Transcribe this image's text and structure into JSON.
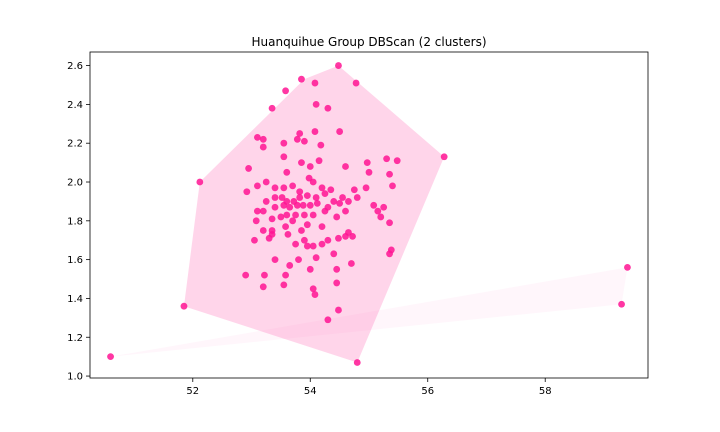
{
  "chart_data": {
    "type": "scatter",
    "title": "Huanquihue Group DBScan (2 clusters)",
    "xlabel": "",
    "ylabel": "",
    "xlim": [
      50.25,
      59.75
    ],
    "ylim": [
      0.99,
      2.67
    ],
    "xticks": [
      52,
      54,
      56,
      58
    ],
    "yticks": [
      1.0,
      1.2,
      1.4,
      1.6,
      1.8,
      2.0,
      2.2,
      2.4,
      2.6
    ],
    "grid": false,
    "point_color": "#ff1493",
    "hull_fill": "#ff69b4",
    "clusters": [
      {
        "hull": [
          [
            54.48,
            2.6
          ],
          [
            56.28,
            2.13
          ],
          [
            54.8,
            1.07
          ],
          [
            51.85,
            1.36
          ],
          [
            52.12,
            2.0
          ],
          [
            53.9,
            2.53
          ]
        ],
        "points": [
          [
            54.48,
            2.6
          ],
          [
            53.85,
            2.53
          ],
          [
            54.08,
            2.51
          ],
          [
            54.78,
            2.51
          ],
          [
            53.58,
            2.47
          ],
          [
            53.35,
            2.38
          ],
          [
            54.1,
            2.4
          ],
          [
            54.3,
            2.38
          ],
          [
            56.28,
            2.13
          ],
          [
            52.12,
            2.0
          ],
          [
            51.85,
            1.36
          ],
          [
            54.8,
            1.07
          ],
          [
            54.3,
            1.29
          ],
          [
            54.48,
            1.34
          ],
          [
            54.05,
            1.45
          ],
          [
            54.08,
            1.42
          ],
          [
            53.2,
            1.46
          ],
          [
            53.55,
            1.47
          ],
          [
            54.45,
            1.48
          ],
          [
            52.9,
            1.52
          ],
          [
            53.22,
            1.52
          ],
          [
            53.58,
            1.52
          ],
          [
            53.65,
            1.57
          ],
          [
            54.0,
            1.55
          ],
          [
            54.7,
            1.58
          ],
          [
            53.8,
            1.6
          ],
          [
            53.4,
            1.6
          ],
          [
            54.1,
            1.61
          ],
          [
            54.4,
            1.63
          ],
          [
            55.35,
            1.63
          ],
          [
            55.38,
            1.65
          ],
          [
            53.05,
            1.7
          ],
          [
            53.3,
            1.71
          ],
          [
            53.62,
            1.73
          ],
          [
            53.75,
            1.68
          ],
          [
            53.95,
            1.67
          ],
          [
            54.05,
            1.67
          ],
          [
            54.2,
            1.68
          ],
          [
            54.3,
            1.7
          ],
          [
            54.48,
            1.71
          ],
          [
            54.6,
            1.72
          ],
          [
            54.72,
            1.72
          ],
          [
            54.65,
            1.74
          ],
          [
            53.2,
            1.75
          ],
          [
            53.35,
            1.75
          ],
          [
            53.58,
            1.77
          ],
          [
            53.85,
            1.75
          ],
          [
            53.95,
            1.78
          ],
          [
            53.08,
            1.8
          ],
          [
            53.35,
            1.81
          ],
          [
            53.5,
            1.82
          ],
          [
            53.7,
            1.8
          ],
          [
            53.9,
            1.83
          ],
          [
            54.05,
            1.83
          ],
          [
            54.25,
            1.85
          ],
          [
            54.45,
            1.82
          ],
          [
            54.6,
            1.85
          ],
          [
            55.2,
            1.82
          ],
          [
            55.35,
            1.79
          ],
          [
            53.1,
            1.85
          ],
          [
            53.2,
            1.85
          ],
          [
            53.4,
            1.87
          ],
          [
            53.55,
            1.88
          ],
          [
            53.65,
            1.87
          ],
          [
            53.78,
            1.88
          ],
          [
            53.88,
            1.88
          ],
          [
            54.0,
            1.88
          ],
          [
            54.12,
            1.89
          ],
          [
            54.3,
            1.87
          ],
          [
            54.5,
            1.89
          ],
          [
            55.15,
            1.85
          ],
          [
            52.92,
            1.95
          ],
          [
            53.25,
            1.9
          ],
          [
            53.4,
            1.92
          ],
          [
            53.52,
            1.92
          ],
          [
            53.6,
            1.9
          ],
          [
            53.72,
            1.9
          ],
          [
            53.82,
            1.92
          ],
          [
            53.95,
            1.93
          ],
          [
            54.1,
            1.92
          ],
          [
            54.25,
            1.94
          ],
          [
            54.4,
            1.9
          ],
          [
            54.55,
            1.92
          ],
          [
            54.65,
            1.9
          ],
          [
            54.8,
            1.92
          ],
          [
            55.08,
            1.88
          ],
          [
            55.25,
            1.87
          ],
          [
            53.1,
            1.98
          ],
          [
            53.25,
            2.0
          ],
          [
            53.4,
            1.97
          ],
          [
            53.55,
            1.97
          ],
          [
            53.7,
            1.98
          ],
          [
            53.82,
            1.95
          ],
          [
            53.98,
            2.02
          ],
          [
            54.05,
            2.0
          ],
          [
            54.2,
            1.97
          ],
          [
            54.35,
            1.96
          ],
          [
            54.75,
            1.96
          ],
          [
            54.95,
            1.97
          ],
          [
            55.4,
            1.98
          ],
          [
            52.95,
            2.07
          ],
          [
            53.6,
            2.05
          ],
          [
            54.0,
            2.08
          ],
          [
            54.6,
            2.08
          ],
          [
            54.97,
            2.1
          ],
          [
            55.35,
            2.04
          ],
          [
            55.48,
            2.11
          ],
          [
            55.3,
            2.12
          ],
          [
            53.55,
            2.13
          ],
          [
            53.85,
            2.1
          ],
          [
            54.15,
            2.11
          ],
          [
            53.2,
            2.18
          ],
          [
            53.55,
            2.2
          ],
          [
            53.78,
            2.22
          ],
          [
            53.9,
            2.21
          ],
          [
            54.18,
            2.19
          ],
          [
            53.1,
            2.23
          ],
          [
            53.2,
            2.22
          ],
          [
            53.82,
            2.25
          ],
          [
            54.08,
            2.26
          ],
          [
            54.5,
            2.26
          ],
          [
            55.0,
            2.05
          ],
          [
            53.35,
            1.73
          ],
          [
            54.45,
            1.55
          ],
          [
            54.2,
            1.77
          ],
          [
            53.75,
            1.83
          ],
          [
            53.6,
            1.83
          ],
          [
            53.9,
            1.7
          ]
        ]
      },
      {
        "hull": [
          [
            50.6,
            1.1
          ],
          [
            59.4,
            1.56
          ],
          [
            59.3,
            1.37
          ]
        ],
        "points": [
          [
            50.6,
            1.1
          ],
          [
            59.4,
            1.56
          ],
          [
            59.3,
            1.37
          ]
        ]
      }
    ]
  }
}
